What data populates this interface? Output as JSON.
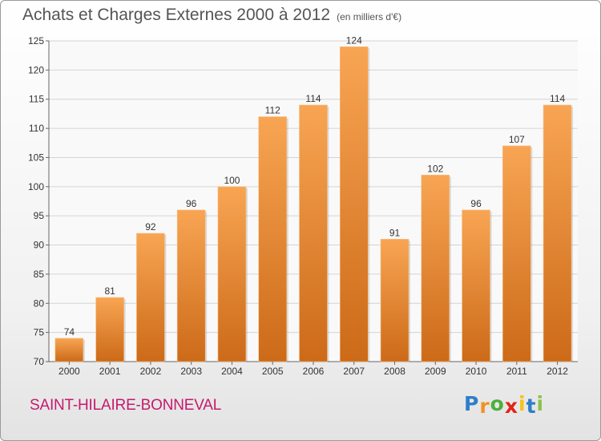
{
  "header": {
    "title": "Achats et Charges Externes 2000 à 2012",
    "unit": "(en milliers d'€)"
  },
  "footer": {
    "commune": "SAINT-HILAIRE-BONNEVAL",
    "brand_letters": [
      "P",
      "r",
      "o",
      "x",
      "i",
      "t",
      "i"
    ],
    "brand_colors": [
      "#2e7ec8",
      "#f29221",
      "#4caf3c",
      "#e2231a",
      "#f6c318",
      "#2e7ec8",
      "#8bc34a"
    ]
  },
  "colors": {
    "bar_top": "#f8a553",
    "bar_bottom": "#cc6a18",
    "grid": "#d4d4d4",
    "axis": "#666666",
    "text": "#333333"
  },
  "chart_data": {
    "type": "bar",
    "categories": [
      "2000",
      "2001",
      "2002",
      "2003",
      "2004",
      "2005",
      "2006",
      "2007",
      "2008",
      "2009",
      "2010",
      "2011",
      "2012"
    ],
    "values": [
      74,
      81,
      92,
      96,
      100,
      112,
      114,
      124,
      91,
      102,
      96,
      107,
      114
    ],
    "title": "Achats et Charges Externes 2000 à 2012",
    "subtitle": "(en milliers d'€)",
    "ylim": [
      70,
      125
    ],
    "yticks": [
      70,
      75,
      80,
      85,
      90,
      95,
      100,
      105,
      110,
      115,
      120,
      125
    ],
    "grid": true,
    "data_labels": true
  }
}
